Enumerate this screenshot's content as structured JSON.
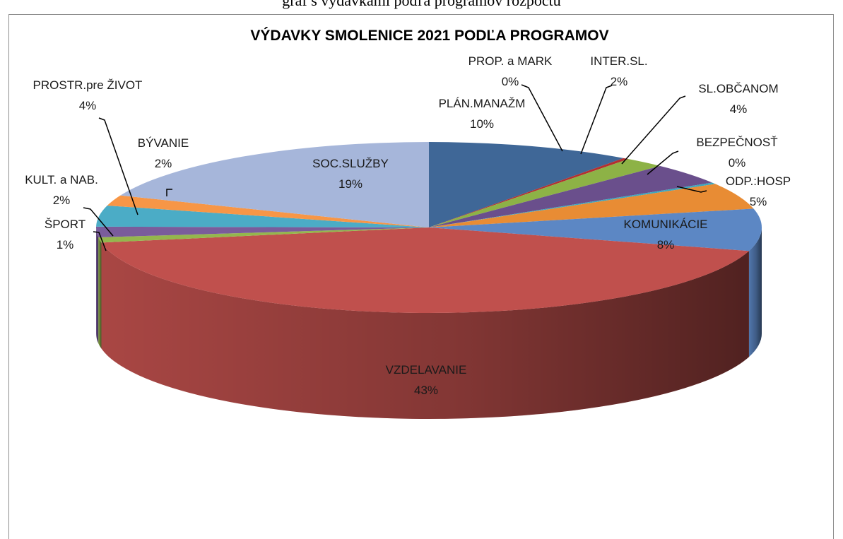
{
  "page_header": {
    "text": "graf s výdavkami podľa programov rozpočtu"
  },
  "colors": {
    "slice_colors": [
      "#3F6797",
      "#B33030",
      "#8DB246",
      "#6A4F8C",
      "#3FA7BE",
      "#E88C34",
      "#5C87C4",
      "#C0504D",
      "#94B64D",
      "#7A5C9B",
      "#4BACC6",
      "#F79646",
      "#A6B6DA"
    ]
  },
  "chart_data": {
    "type": "pie",
    "title": "VÝDAVKY SMOLENICE 2021 PODĽA PROGRAMOV",
    "start_angle_deg": 90,
    "legend": "none",
    "slices": [
      {
        "label": "PLÁN.MANAŽM",
        "value": 10,
        "percent_label": "10%"
      },
      {
        "label": "PROP. a MARK",
        "value": 0.3,
        "percent_label": "0%"
      },
      {
        "label": "INTER.SL.",
        "value": 2,
        "percent_label": "2%"
      },
      {
        "label": "SL.OBČANOM",
        "value": 4,
        "percent_label": "4%"
      },
      {
        "label": "BEZPEČNOSŤ",
        "value": 0.3,
        "percent_label": "0%"
      },
      {
        "label": "ODP.:HOSP",
        "value": 5,
        "percent_label": "5%"
      },
      {
        "label": "KOMUNIKÁCIE",
        "value": 8,
        "percent_label": "8%"
      },
      {
        "label": "VZDELAVANIE",
        "value": 43,
        "percent_label": "43%"
      },
      {
        "label": "ŠPORT",
        "value": 1,
        "percent_label": "1%"
      },
      {
        "label": "KULT. a NAB.",
        "value": 2,
        "percent_label": "2%"
      },
      {
        "label": "PROSTR.pre ŽIVOT",
        "value": 4,
        "percent_label": "4%"
      },
      {
        "label": "BÝVANIE",
        "value": 2,
        "percent_label": "2%"
      },
      {
        "label": "SOC.SLUŽBY",
        "value": 19,
        "percent_label": "19%"
      }
    ]
  }
}
